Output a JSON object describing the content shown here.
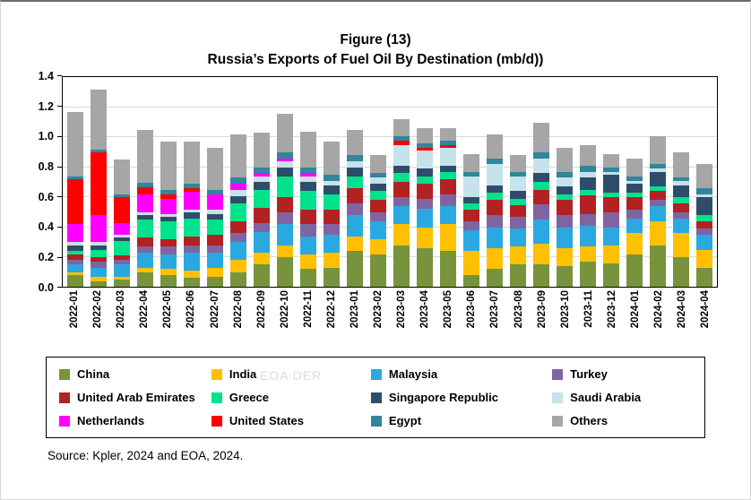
{
  "title": {
    "line1": "Figure (13)",
    "line2": "Russia’s Exports of Fuel Oil By Destination (mb/d))"
  },
  "watermark": "EOA DER",
  "source": "Source: Kpler, 2024 and EOA, 2024.",
  "chart_data": {
    "type": "bar",
    "stacked": true,
    "title": "Russia’s Exports of Fuel Oil By Destination (mb/d))",
    "xlabel": "",
    "ylabel": "",
    "ylim": [
      0,
      1.4
    ],
    "yticks": [
      0.0,
      0.2,
      0.4,
      0.6,
      0.8,
      1.0,
      1.2,
      1.4
    ],
    "grid": true,
    "legend_position": "bottom",
    "categories": [
      "2022-01",
      "2022-02",
      "2022-03",
      "2022-04",
      "2022-05",
      "2022-06",
      "2022-07",
      "2022-08",
      "2022-09",
      "2022-10",
      "2022-11",
      "2022-12",
      "2023-01",
      "2023-02",
      "2023-03",
      "2023-04",
      "2023-05",
      "2023-06",
      "2023-07",
      "2023-08",
      "2023-09",
      "2023-10",
      "2023-11",
      "2023-12",
      "2024-01",
      "2024-02",
      "2024-03",
      "2024-04"
    ],
    "series": [
      {
        "name": "China",
        "color": "#77933C",
        "values": [
          0.08,
          0.04,
          0.05,
          0.1,
          0.08,
          0.06,
          0.07,
          0.1,
          0.15,
          0.2,
          0.12,
          0.13,
          0.24,
          0.22,
          0.28,
          0.26,
          0.24,
          0.08,
          0.12,
          0.15,
          0.15,
          0.14,
          0.17,
          0.16,
          0.22,
          0.28,
          0.2,
          0.13
        ]
      },
      {
        "name": "India",
        "color": "#FFC000",
        "values": [
          0.02,
          0.03,
          0.02,
          0.03,
          0.04,
          0.05,
          0.06,
          0.08,
          0.08,
          0.08,
          0.1,
          0.1,
          0.1,
          0.1,
          0.14,
          0.14,
          0.18,
          0.16,
          0.14,
          0.12,
          0.14,
          0.12,
          0.1,
          0.12,
          0.14,
          0.16,
          0.16,
          0.12
        ]
      },
      {
        "name": "Malaysia",
        "color": "#2AA9E0",
        "values": [
          0.05,
          0.06,
          0.08,
          0.1,
          0.1,
          0.12,
          0.1,
          0.12,
          0.14,
          0.14,
          0.12,
          0.12,
          0.14,
          0.12,
          0.12,
          0.12,
          0.12,
          0.14,
          0.14,
          0.12,
          0.16,
          0.14,
          0.14,
          0.12,
          0.1,
          0.1,
          0.1,
          0.1
        ]
      },
      {
        "name": "Turkey",
        "color": "#8064A2",
        "values": [
          0.03,
          0.04,
          0.03,
          0.04,
          0.05,
          0.05,
          0.05,
          0.06,
          0.06,
          0.08,
          0.08,
          0.07,
          0.08,
          0.06,
          0.06,
          0.07,
          0.08,
          0.06,
          0.08,
          0.08,
          0.1,
          0.08,
          0.08,
          0.1,
          0.06,
          0.04,
          0.04,
          0.04
        ]
      },
      {
        "name": "United Arab Emirates",
        "color": "#B22222",
        "values": [
          0.04,
          0.03,
          0.03,
          0.06,
          0.05,
          0.06,
          0.07,
          0.08,
          0.1,
          0.1,
          0.1,
          0.1,
          0.1,
          0.08,
          0.1,
          0.1,
          0.1,
          0.08,
          0.1,
          0.08,
          0.1,
          0.1,
          0.12,
          0.1,
          0.08,
          0.06,
          0.06,
          0.05
        ]
      },
      {
        "name": "Greece",
        "color": "#00E28C",
        "values": [
          0.02,
          0.05,
          0.1,
          0.12,
          0.12,
          0.12,
          0.1,
          0.12,
          0.12,
          0.14,
          0.12,
          0.1,
          0.08,
          0.06,
          0.06,
          0.05,
          0.05,
          0.04,
          0.05,
          0.04,
          0.05,
          0.04,
          0.04,
          0.03,
          0.03,
          0.03,
          0.04,
          0.04
        ]
      },
      {
        "name": "Singapore Republic",
        "color": "#2E4D6B",
        "values": [
          0.04,
          0.03,
          0.02,
          0.03,
          0.03,
          0.04,
          0.04,
          0.05,
          0.05,
          0.06,
          0.06,
          0.06,
          0.06,
          0.05,
          0.05,
          0.05,
          0.04,
          0.04,
          0.05,
          0.05,
          0.06,
          0.05,
          0.08,
          0.12,
          0.06,
          0.1,
          0.08,
          0.12
        ]
      },
      {
        "name": "Saudi Arabia",
        "color": "#C6E2EA",
        "values": [
          0.02,
          0.02,
          0.02,
          0.02,
          0.02,
          0.02,
          0.03,
          0.04,
          0.04,
          0.04,
          0.04,
          0.03,
          0.04,
          0.04,
          0.14,
          0.12,
          0.12,
          0.14,
          0.14,
          0.1,
          0.1,
          0.06,
          0.04,
          0.02,
          0.02,
          0.02,
          0.03,
          0.02
        ]
      },
      {
        "name": "Netherlands",
        "color": "#FF00FF",
        "values": [
          0.12,
          0.18,
          0.08,
          0.12,
          0.1,
          0.12,
          0.1,
          0.04,
          0.02,
          0.02,
          0.02,
          0.0,
          0.0,
          0.0,
          0.0,
          0.0,
          0.0,
          0.0,
          0.0,
          0.0,
          0.0,
          0.0,
          0.0,
          0.0,
          0.0,
          0.0,
          0.0,
          0.0
        ]
      },
      {
        "name": "United States",
        "color": "#FF0000",
        "values": [
          0.3,
          0.42,
          0.17,
          0.05,
          0.03,
          0.02,
          0.0,
          0.0,
          0.0,
          0.0,
          0.0,
          0.0,
          0.0,
          0.0,
          0.03,
          0.02,
          0.02,
          0.0,
          0.0,
          0.0,
          0.0,
          0.0,
          0.0,
          0.0,
          0.0,
          0.0,
          0.0,
          0.0
        ]
      },
      {
        "name": "Egypt",
        "color": "#31859C",
        "values": [
          0.02,
          0.02,
          0.02,
          0.03,
          0.03,
          0.03,
          0.03,
          0.04,
          0.04,
          0.04,
          0.04,
          0.04,
          0.04,
          0.03,
          0.03,
          0.03,
          0.03,
          0.03,
          0.04,
          0.03,
          0.04,
          0.04,
          0.04,
          0.03,
          0.03,
          0.03,
          0.02,
          0.04
        ]
      },
      {
        "name": "Others",
        "color": "#A6A6A6",
        "values": [
          0.43,
          0.4,
          0.23,
          0.35,
          0.32,
          0.28,
          0.28,
          0.29,
          0.23,
          0.26,
          0.24,
          0.22,
          0.17,
          0.12,
          0.11,
          0.1,
          0.08,
          0.12,
          0.16,
          0.11,
          0.2,
          0.16,
          0.14,
          0.09,
          0.12,
          0.19,
          0.17,
          0.16
        ]
      }
    ]
  }
}
